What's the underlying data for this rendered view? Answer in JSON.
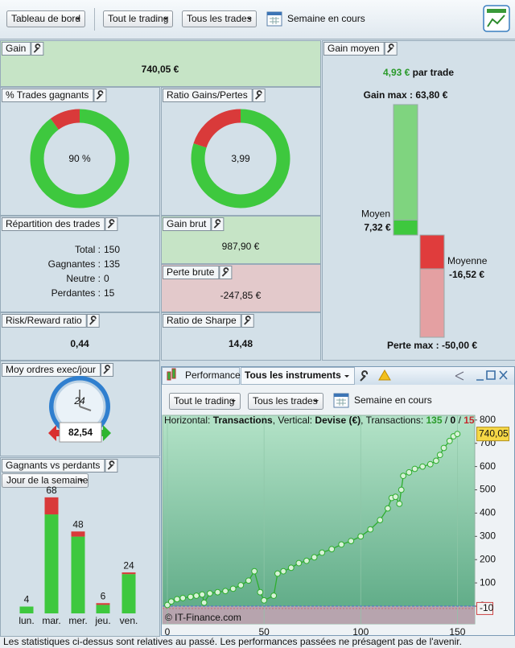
{
  "toolbar": {
    "dashboard": "Tableau de bord",
    "trading": "Tout le trading",
    "trades": "Tous les trades",
    "period": "Semaine en cours"
  },
  "panels": {
    "gain": {
      "title": "Gain",
      "value": "740,05 €"
    },
    "win_rate": {
      "title": "% Trades gagnants",
      "value": 90,
      "label": "90 %"
    },
    "ratio": {
      "title": "Ratio Gains/Pertes",
      "value": 3.99,
      "label": "3,99"
    },
    "distribution": {
      "title": "Répartition des trades",
      "rows": [
        [
          "Total :",
          "150"
        ],
        [
          "Gagnantes :",
          "135"
        ],
        [
          "Neutre :",
          "0"
        ],
        [
          "Perdantes :",
          "15"
        ]
      ]
    },
    "gross_gain": {
      "title": "Gain brut",
      "value": "987,90 €"
    },
    "gross_loss": {
      "title": "Perte brute",
      "value": "-247,85 €"
    },
    "risk_reward": {
      "title": "Risk/Reward ratio",
      "value": "0,44"
    },
    "sharpe": {
      "title": "Ratio de Sharpe",
      "value": "14,48"
    },
    "orders": {
      "title": "Moy ordres exec/jour",
      "clock": "24",
      "value": "82,54"
    },
    "avg_gain": {
      "title": "Gain moyen",
      "headline": "4,93 €",
      "suffix": "par trade",
      "labels": [
        "Gain max :",
        "Moyen",
        "Moyenne",
        "Perte max :"
      ],
      "values": [
        63.8,
        7.32,
        -16.52,
        -50
      ],
      "value_labels": [
        "63,80 €",
        "7,32 €",
        "-16,52 €",
        "-50,00 €"
      ]
    }
  },
  "performance_panel": {
    "tab": "Performance",
    "instruments": "Tous les instruments",
    "trading": "Tout le trading",
    "trades": "Tous les trades",
    "period": "Semaine en cours",
    "copyright": "© IT-Finance.com"
  },
  "chart_data": [
    {
      "type": "bar",
      "stacked": true,
      "title": "Gagnants vs perdants",
      "filter": "Jour de la semaine",
      "categories": [
        "lun.",
        "mar.",
        "mer.",
        "jeu.",
        "ven."
      ],
      "series": [
        {
          "color": "#3ec83e",
          "values": [
            4,
            58,
            45,
            5,
            23
          ]
        },
        {
          "color": "#d93a3a",
          "values": [
            0,
            10,
            3,
            1,
            1
          ]
        }
      ],
      "totals": [
        4,
        68,
        48,
        6,
        24
      ]
    },
    {
      "type": "line",
      "info": {
        "h_label": "Horizontal: ",
        "h_value": "Transactions",
        "v_label": ", Vertical: ",
        "v_value": "Devise (€)",
        "t_label": ", Transactions: ",
        "wins": "135",
        "sep": " / ",
        "neutral": "0",
        "losses": "15"
      },
      "x": [
        0,
        2,
        5,
        8,
        12,
        15,
        18,
        19,
        22,
        26,
        30,
        34,
        38,
        42,
        45,
        48,
        50,
        55,
        57,
        60,
        64,
        68,
        72,
        76,
        80,
        85,
        90,
        95,
        100,
        105,
        110,
        114,
        116,
        118,
        120,
        121,
        122,
        125,
        128,
        132,
        136,
        139,
        141,
        143,
        146,
        148,
        150
      ],
      "series": [
        {
          "color": "#2eae2e",
          "values": [
            5,
            20,
            30,
            35,
            40,
            45,
            50,
            15,
            55,
            60,
            65,
            75,
            90,
            110,
            150,
            60,
            25,
            45,
            140,
            150,
            165,
            185,
            195,
            210,
            230,
            245,
            265,
            280,
            300,
            330,
            370,
            420,
            465,
            470,
            440,
            500,
            560,
            575,
            590,
            600,
            610,
            625,
            650,
            680,
            710,
            730,
            740.05
          ]
        }
      ],
      "last_value_label": "740,05",
      "min_marker": -10,
      "xlim": [
        -2.5,
        159
      ],
      "ylim": [
        -76,
        820
      ],
      "xticks": [
        0,
        50,
        100,
        150
      ],
      "yticks": [
        0,
        100,
        200,
        300,
        400,
        500,
        600,
        700,
        800
      ]
    }
  ],
  "disclaimer": "Les statistiques ci-dessus sont relatives au passé. Les performances passées ne présagent pas de l'avenir."
}
